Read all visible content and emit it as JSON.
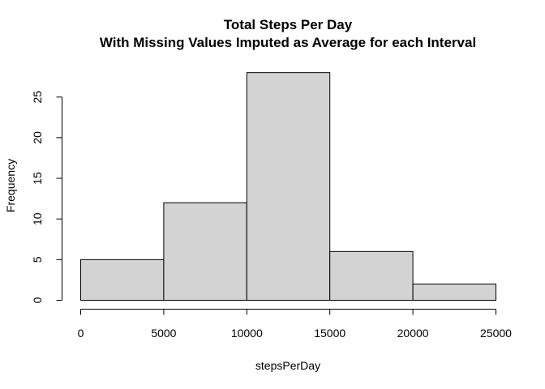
{
  "chart_data": {
    "type": "bar",
    "title": "Total Steps Per Day",
    "subtitle": "With Missing Values Imputed as Average for each Interval",
    "xlabel": "stepsPerDay",
    "ylabel": "Frequency",
    "bin_edges": [
      0,
      5000,
      10000,
      15000,
      20000,
      25000
    ],
    "values": [
      5,
      12,
      28,
      6,
      2
    ],
    "xlim": [
      0,
      25000
    ],
    "ylim": [
      0,
      28
    ],
    "x_ticks": [
      0,
      5000,
      10000,
      15000,
      20000,
      25000
    ],
    "y_ticks": [
      0,
      5,
      10,
      15,
      20,
      25
    ],
    "bar_color": "#d3d3d3",
    "edge_color": "#000000",
    "grid": false,
    "legend": "none"
  }
}
